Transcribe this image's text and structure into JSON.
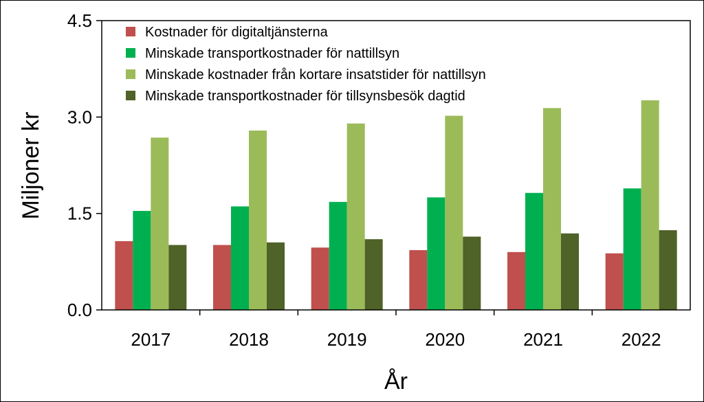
{
  "chart_data": {
    "type": "bar",
    "categories": [
      "2017",
      "2018",
      "2019",
      "2020",
      "2021",
      "2022"
    ],
    "series": [
      {
        "name": "Kostnader för digitaltjänsterna",
        "color": "#c0504d",
        "values": [
          1.07,
          1.01,
          0.97,
          0.93,
          0.9,
          0.88
        ]
      },
      {
        "name": "Minskade transportkostnader för nattillsyn",
        "color": "#00b050",
        "values": [
          1.54,
          1.61,
          1.68,
          1.75,
          1.82,
          1.89
        ]
      },
      {
        "name": "Minskade kostnader från kortare insatstider för nattillsyn",
        "color": "#9bbb59",
        "values": [
          2.68,
          2.79,
          2.9,
          3.02,
          3.14,
          3.26
        ]
      },
      {
        "name": "Minskade transportkostnader för tillsynsbesök dagtid",
        "color": "#4f6228",
        "values": [
          1.01,
          1.05,
          1.1,
          1.14,
          1.19,
          1.24
        ]
      }
    ],
    "ylim": [
      0,
      4.5
    ],
    "yticks": [
      "0.0",
      "1.5",
      "3.0",
      "4.5"
    ],
    "ytick_values": [
      0,
      1.5,
      3.0,
      4.5
    ],
    "xlabel": "År",
    "ylabel": "Miljoner kr",
    "legend": "top-left-inside",
    "grid": false
  }
}
